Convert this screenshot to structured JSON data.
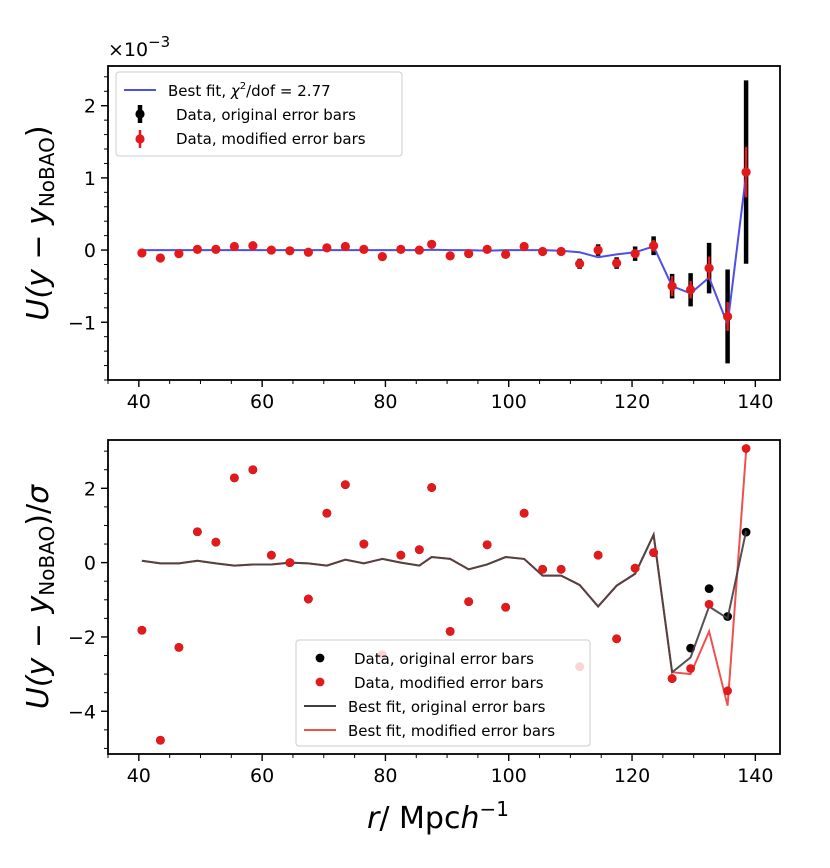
{
  "chart_data": [
    {
      "type": "scatter",
      "panel": "top",
      "ylabel": "U(y − y_NoBAO)",
      "ylabel_parts": {
        "pre": "U(",
        "y1": "y",
        "minus": " − ",
        "y2": "y",
        "sub": "NoBAO",
        "post": ")"
      },
      "offset_label": {
        "base": "×10",
        "exp": "−3"
      },
      "xlim": [
        35,
        144
      ],
      "ylim": [
        -1.8,
        2.55
      ],
      "xticks": [
        40,
        60,
        80,
        100,
        120,
        140
      ],
      "xtick_labels": [
        "40",
        "60",
        "80",
        "100",
        "120",
        "140"
      ],
      "yticks": [
        -1,
        0,
        1,
        2
      ],
      "ytick_labels": [
        "−1",
        "0",
        "1",
        "2"
      ],
      "legend": {
        "position": "upper-left",
        "entries": [
          {
            "pre": "Best fit, ",
            "chi": "χ",
            "sup": "2",
            "post": "/dof = 2.77",
            "color": "#4e4ee8",
            "marker": "line"
          },
          {
            "label": "Data, original error bars",
            "color": "#000000",
            "marker": "errorbar"
          },
          {
            "label": "Data, modified error bars",
            "color": "#e31a1c",
            "marker": "errorbar"
          }
        ]
      },
      "x": [
        40.5,
        43.5,
        46.5,
        49.5,
        52.5,
        55.5,
        58.5,
        61.5,
        64.5,
        67.5,
        70.5,
        73.5,
        76.5,
        79.5,
        82.5,
        85.5,
        87.5,
        90.5,
        93.5,
        96.5,
        99.5,
        102.5,
        105.5,
        108.5,
        111.5,
        114.5,
        117.5,
        120.5,
        123.5,
        126.5,
        129.5,
        132.5,
        135.5,
        138.5
      ],
      "series": [
        {
          "name": "Best fit",
          "color": "#4e4ee8",
          "style": "line",
          "values": [
            0.0,
            0.0,
            0.0,
            0.0,
            0.0,
            0.0,
            0.0,
            0.0,
            0.0,
            0.0,
            0.0,
            0.0,
            0.0,
            0.0,
            0.0,
            0.0,
            0.005,
            0.0,
            0.0,
            -0.01,
            0.0,
            0.0,
            0.0,
            -0.01,
            -0.03,
            -0.1,
            -0.06,
            -0.03,
            0.05,
            -0.5,
            -0.6,
            -0.38,
            -1.03,
            1.05
          ]
        },
        {
          "name": "Data, original error bars",
          "color": "#000000",
          "style": "errorbar",
          "values": [
            -0.04,
            -0.11,
            -0.05,
            0.01,
            0.01,
            0.05,
            0.06,
            0.0,
            -0.01,
            -0.03,
            0.03,
            0.05,
            0.01,
            -0.09,
            0.01,
            0.0,
            0.08,
            -0.08,
            -0.05,
            0.01,
            -0.06,
            0.05,
            -0.02,
            -0.02,
            -0.19,
            0.0,
            -0.18,
            -0.05,
            0.06,
            -0.5,
            -0.55,
            -0.25,
            -0.92,
            1.08
          ],
          "errors": [
            0.03,
            0.03,
            0.03,
            0.03,
            0.03,
            0.03,
            0.03,
            0.03,
            0.03,
            0.03,
            0.03,
            0.03,
            0.03,
            0.03,
            0.03,
            0.03,
            0.03,
            0.03,
            0.03,
            0.03,
            0.03,
            0.03,
            0.03,
            0.03,
            0.07,
            0.08,
            0.08,
            0.1,
            0.13,
            0.17,
            0.23,
            0.35,
            0.65,
            1.27
          ]
        },
        {
          "name": "Data, modified error bars",
          "color": "#e31a1c",
          "style": "errorbar",
          "values": [
            -0.04,
            -0.11,
            -0.05,
            0.01,
            0.01,
            0.05,
            0.06,
            0.0,
            -0.01,
            -0.03,
            0.03,
            0.05,
            0.01,
            -0.09,
            0.01,
            0.0,
            0.08,
            -0.08,
            -0.05,
            0.01,
            -0.06,
            0.05,
            -0.02,
            -0.02,
            -0.19,
            0.0,
            -0.18,
            -0.05,
            0.06,
            -0.5,
            -0.55,
            -0.25,
            -0.92,
            1.08
          ],
          "errors": [
            0.03,
            0.03,
            0.03,
            0.03,
            0.03,
            0.03,
            0.03,
            0.03,
            0.03,
            0.03,
            0.03,
            0.03,
            0.03,
            0.03,
            0.03,
            0.03,
            0.03,
            0.03,
            0.03,
            0.03,
            0.03,
            0.03,
            0.03,
            0.03,
            0.04,
            0.05,
            0.06,
            0.06,
            0.08,
            0.14,
            0.12,
            0.16,
            0.2,
            0.35
          ]
        }
      ]
    },
    {
      "type": "scatter",
      "panel": "bottom",
      "ylabel": "U(y − y_NoBAO)/σ",
      "ylabel_parts": {
        "pre": "U(",
        "y1": "y",
        "minus": " − ",
        "y2": "y",
        "sub": "NoBAO",
        "post": ")/",
        "sigma": "σ"
      },
      "xlabel": "r/   Mpch^−1",
      "xlabel_parts": {
        "r": "r",
        "slash": "/   Mpc",
        "h": "h",
        "sup": "−1"
      },
      "xlim": [
        35,
        144
      ],
      "ylim": [
        -5.15,
        3.3
      ],
      "xticks": [
        40,
        60,
        80,
        100,
        120,
        140
      ],
      "xtick_labels": [
        "40",
        "60",
        "80",
        "100",
        "120",
        "140"
      ],
      "yticks": [
        -4,
        -2,
        0,
        2
      ],
      "ytick_labels": [
        "−4",
        "−2",
        "0",
        "2"
      ],
      "legend": {
        "position": "lower-center",
        "entries": [
          {
            "label": "Data, original error bars",
            "color": "#000000",
            "marker": "dot"
          },
          {
            "label": "Data, modified error bars",
            "color": "#e31a1c",
            "marker": "dot"
          },
          {
            "label": "Best fit, original error bars",
            "color": "#404040",
            "marker": "line"
          },
          {
            "label": "Best fit, modified error bars",
            "color": "#f05050",
            "marker": "line"
          }
        ]
      },
      "x": [
        40.5,
        43.5,
        46.5,
        49.5,
        52.5,
        55.5,
        58.5,
        61.5,
        64.5,
        67.5,
        70.5,
        73.5,
        76.5,
        79.5,
        82.5,
        85.5,
        87.5,
        90.5,
        93.5,
        96.5,
        99.5,
        102.5,
        105.5,
        108.5,
        111.5,
        114.5,
        117.5,
        120.5,
        123.5,
        126.5,
        129.5,
        132.5,
        135.5,
        138.5
      ],
      "series": [
        {
          "name": "Best fit, original error bars",
          "color": "#404040",
          "style": "line",
          "values": [
            0.05,
            -0.02,
            -0.02,
            0.05,
            -0.02,
            -0.08,
            -0.05,
            -0.05,
            0.0,
            -0.02,
            -0.08,
            0.08,
            -0.02,
            0.1,
            0.0,
            -0.08,
            0.15,
            0.1,
            -0.18,
            -0.05,
            0.15,
            0.1,
            -0.35,
            -0.35,
            -0.6,
            -1.18,
            -0.62,
            -0.3,
            0.75,
            -2.95,
            -2.55,
            -1.18,
            -1.5,
            0.85
          ]
        },
        {
          "name": "Best fit, modified error bars",
          "color": "#f05050",
          "style": "line",
          "values": [
            0.05,
            -0.02,
            -0.02,
            0.05,
            -0.02,
            -0.08,
            -0.05,
            -0.05,
            0.0,
            -0.02,
            -0.08,
            0.08,
            -0.02,
            0.1,
            0.0,
            -0.08,
            0.15,
            0.1,
            -0.18,
            -0.05,
            0.15,
            0.1,
            -0.35,
            -0.35,
            -0.6,
            -1.18,
            -0.62,
            -0.3,
            0.75,
            -2.95,
            -3.0,
            -1.85,
            -3.85,
            3.0
          ]
        },
        {
          "name": "Data, original error bars",
          "color": "#000000",
          "style": "dot",
          "values": [
            -1.82,
            -4.78,
            -2.28,
            0.83,
            0.55,
            2.28,
            2.5,
            0.2,
            0.0,
            -0.98,
            1.33,
            2.1,
            0.5,
            -2.48,
            0.2,
            0.35,
            2.02,
            -1.85,
            -1.05,
            0.48,
            -1.2,
            1.33,
            -0.18,
            -0.18,
            -2.8,
            0.2,
            -2.05,
            -0.15,
            0.27,
            -3.12,
            -2.3,
            -0.7,
            -1.45,
            0.82
          ]
        },
        {
          "name": "Data, modified error bars",
          "color": "#e31a1c",
          "style": "dot",
          "values": [
            -1.82,
            -4.78,
            -2.28,
            0.83,
            0.55,
            2.28,
            2.5,
            0.2,
            0.0,
            -0.98,
            1.33,
            2.1,
            0.5,
            -2.48,
            0.2,
            0.35,
            2.02,
            -1.85,
            -1.05,
            0.48,
            -1.2,
            1.33,
            -0.18,
            -0.18,
            -2.8,
            0.2,
            -2.05,
            -0.15,
            0.27,
            -3.12,
            -2.85,
            -1.12,
            -3.45,
            3.07
          ]
        }
      ]
    }
  ]
}
